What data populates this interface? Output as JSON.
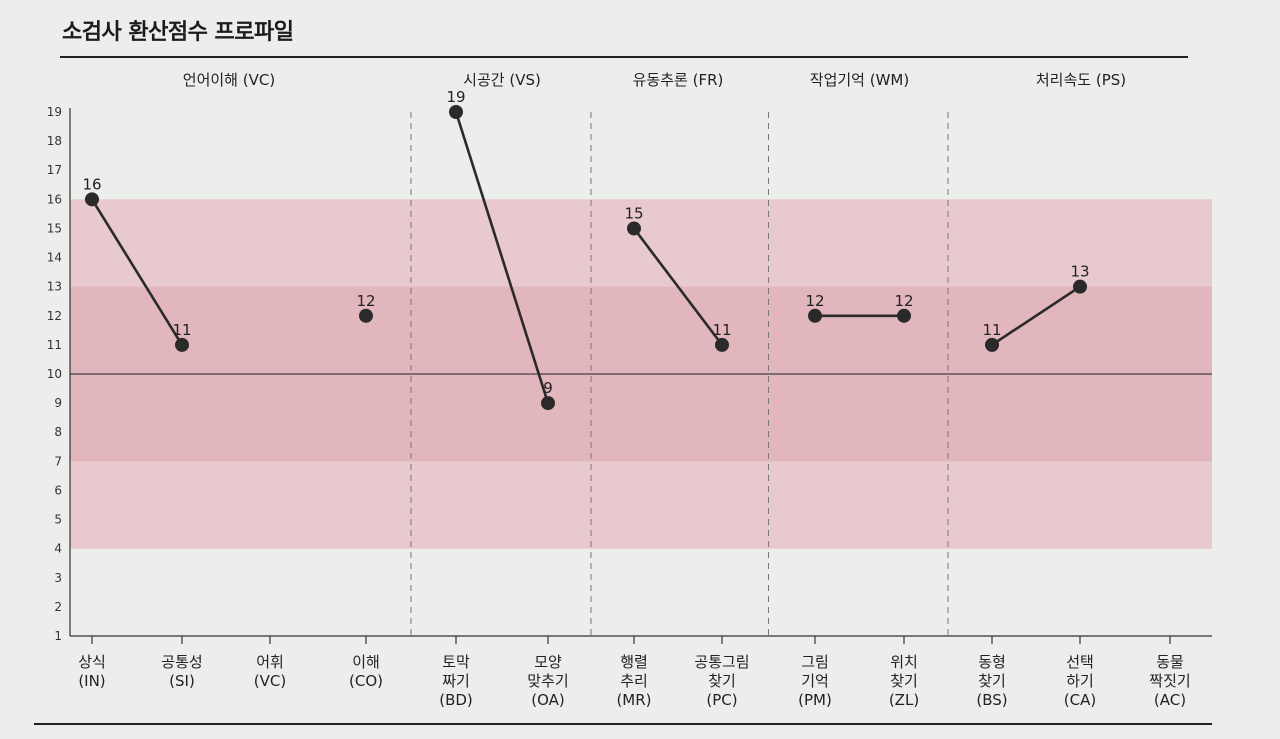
{
  "title": "소검사 환산점수 프로파일",
  "chart_data": {
    "type": "line",
    "title": "소검사 환산점수 프로파일",
    "ylim": [
      1,
      19
    ],
    "yticks": [
      1,
      2,
      3,
      4,
      5,
      6,
      7,
      8,
      9,
      10,
      11,
      12,
      13,
      14,
      15,
      16,
      17,
      18,
      19
    ],
    "reference_line": 10,
    "bands": [
      {
        "from": 4,
        "to": 16,
        "color": "#e8c9cd"
      },
      {
        "from": 7,
        "to": 13,
        "color": "#e2b6bd"
      }
    ],
    "groups": [
      {
        "label": "언어이해 (VC)",
        "categories": [
          0,
          1,
          2,
          3
        ]
      },
      {
        "label": "시공간 (VS)",
        "categories": [
          4,
          5
        ]
      },
      {
        "label": "유동추론 (FR)",
        "categories": [
          6,
          7
        ]
      },
      {
        "label": "작업기억 (WM)",
        "categories": [
          8,
          9
        ]
      },
      {
        "label": "처리속도 (PS)",
        "categories": [
          10,
          11,
          12
        ]
      }
    ],
    "categories": [
      {
        "lines": [
          "상식",
          "(IN)"
        ],
        "value": 16
      },
      {
        "lines": [
          "공통성",
          "(SI)"
        ],
        "value": 11
      },
      {
        "lines": [
          "어휘",
          "(VC)"
        ],
        "value": null
      },
      {
        "lines": [
          "이해",
          "(CO)"
        ],
        "value": 12
      },
      {
        "lines": [
          "토막",
          "짜기",
          "(BD)"
        ],
        "value": 19
      },
      {
        "lines": [
          "모양",
          "맞추기",
          "(OA)"
        ],
        "value": 9
      },
      {
        "lines": [
          "행렬",
          "추리",
          "(MR)"
        ],
        "value": 15
      },
      {
        "lines": [
          "공통그림",
          "찾기",
          "(PC)"
        ],
        "value": 11
      },
      {
        "lines": [
          "그림",
          "기억",
          "(PM)"
        ],
        "value": 12
      },
      {
        "lines": [
          "위치",
          "찾기",
          "(ZL)"
        ],
        "value": 12
      },
      {
        "lines": [
          "동형",
          "찾기",
          "(BS)"
        ],
        "value": 11
      },
      {
        "lines": [
          "선택",
          "하기",
          "(CA)"
        ],
        "value": 13
      },
      {
        "lines": [
          "동물",
          "짝짓기",
          "(AC)"
        ],
        "value": null
      }
    ],
    "connections": [
      [
        0,
        1
      ],
      [
        4,
        5
      ],
      [
        6,
        7
      ],
      [
        8,
        9
      ],
      [
        10,
        11
      ]
    ],
    "colors": {
      "line": "#2a2a2a",
      "marker": "#2a2a2a",
      "axis": "#333333",
      "divider": "#777777"
    }
  }
}
